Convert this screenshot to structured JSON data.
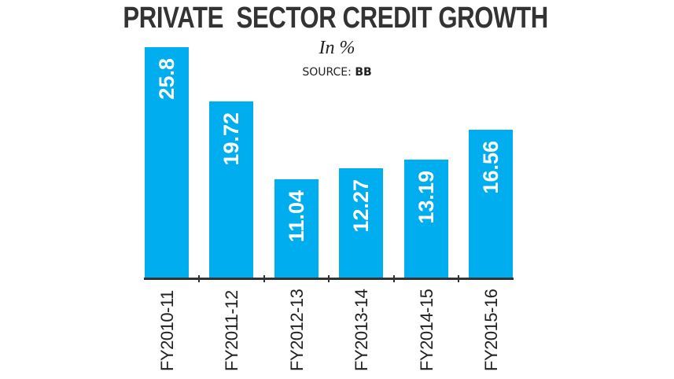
{
  "header": {
    "title": "PRIVATE  SECTOR CREDIT GROWTH",
    "subtitle": "In %",
    "source_label": "SOURCE:",
    "source_value": "BB"
  },
  "colors": {
    "bar": "#00aeef",
    "axis": "#333333",
    "title": "#333333",
    "bar_label": "#ffffff"
  },
  "chart_data": {
    "type": "bar",
    "title": "PRIVATE SECTOR CREDIT GROWTH",
    "subtitle": "In %",
    "source": "SOURCE: BB",
    "categories": [
      "FY2010-11",
      "FY2011-12",
      "FY2012-13",
      "FY2013-14",
      "FY2014-15",
      "FY2015-16"
    ],
    "values": [
      25.8,
      19.72,
      11.04,
      12.27,
      13.19,
      16.56
    ],
    "value_labels": [
      "25.8",
      "19.72",
      "11.04",
      "12.27",
      "13.19",
      "16.56"
    ],
    "xlabel": "",
    "ylabel": "In %",
    "ylim": [
      0,
      26
    ],
    "grid": false,
    "legend": null,
    "data_labels": "inside bars, rotated vertical, white",
    "x_tick_labels_rotation": -90
  }
}
